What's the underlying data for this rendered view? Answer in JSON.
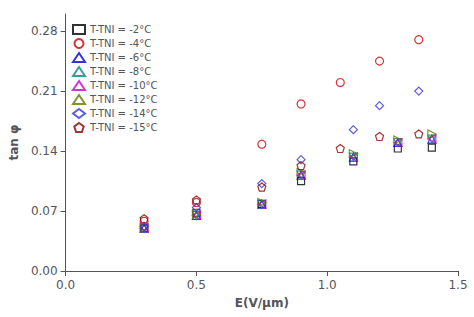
{
  "chart_data": {
    "type": "scatter",
    "xlabel": "E(V/μm)",
    "ylabel": "tan φ",
    "xlim": [
      0.0,
      1.5
    ],
    "ylim": [
      0.0,
      0.3
    ],
    "xticks": [
      {
        "value": 0.0,
        "label": "0.0"
      },
      {
        "value": 0.5,
        "label": "0.5"
      },
      {
        "value": 1.0,
        "label": "1.0"
      },
      {
        "value": 1.5,
        "label": "1.5"
      }
    ],
    "yticks": [
      {
        "value": 0.0,
        "label": "0.00"
      },
      {
        "value": 0.07,
        "label": "0.07"
      },
      {
        "value": 0.14,
        "label": "0.14"
      },
      {
        "value": 0.21,
        "label": "0.21"
      },
      {
        "value": 0.28,
        "label": "0.28"
      }
    ],
    "grid": false,
    "legend": "upper left",
    "series": [
      {
        "name": "T-TNI = -2°C",
        "color": "#000000",
        "marker": "square",
        "x": [
          0.3,
          0.5,
          0.75,
          0.9,
          1.1,
          1.27,
          1.4
        ],
        "values": [
          0.05,
          0.068,
          0.078,
          0.105,
          0.128,
          0.143,
          0.144
        ]
      },
      {
        "name": "T-TNI = -4°C",
        "color": "#cc0000",
        "marker": "circle",
        "x": [
          0.3,
          0.5,
          0.75,
          0.9,
          1.05,
          1.2,
          1.35
        ],
        "values": [
          0.058,
          0.08,
          0.148,
          0.195,
          0.22,
          0.245,
          0.27
        ]
      },
      {
        "name": "T-TNI = -6°C",
        "color": "#0000cc",
        "marker": "triangle-up",
        "x": [
          0.3,
          0.5,
          0.75,
          0.9,
          1.1,
          1.27,
          1.4
        ],
        "values": [
          0.05,
          0.065,
          0.078,
          0.112,
          0.133,
          0.15,
          0.154
        ]
      },
      {
        "name": "T-TNI = -8°C",
        "color": "#008888",
        "marker": "triangle-down",
        "x": [
          0.3,
          0.5,
          0.75,
          0.9,
          1.1,
          1.27,
          1.4
        ],
        "values": [
          0.05,
          0.065,
          0.078,
          0.112,
          0.133,
          0.15,
          0.154
        ]
      },
      {
        "name": "T-TNI = -10°C",
        "color": "#cc00cc",
        "marker": "triangle-left",
        "x": [
          0.3,
          0.5,
          0.75,
          0.9,
          1.1,
          1.27,
          1.4
        ],
        "values": [
          0.05,
          0.065,
          0.078,
          0.112,
          0.133,
          0.15,
          0.154
        ]
      },
      {
        "name": "T-TNI = -12°C",
        "color": "#667700",
        "marker": "triangle-right",
        "x": [
          0.3,
          0.5,
          0.75,
          0.9,
          1.1,
          1.27,
          1.4
        ],
        "values": [
          0.05,
          0.066,
          0.08,
          0.115,
          0.137,
          0.153,
          0.16
        ]
      },
      {
        "name": "T-TNI = -14°C",
        "color": "#3333dd",
        "marker": "diamond",
        "x": [
          0.3,
          0.5,
          0.75,
          0.9,
          1.1,
          1.2,
          1.35
        ],
        "values": [
          0.052,
          0.074,
          0.102,
          0.13,
          0.165,
          0.193,
          0.21
        ]
      },
      {
        "name": "T-TNI = -15°C",
        "color": "#880000",
        "marker": "pentagon",
        "x": [
          0.3,
          0.5,
          0.75,
          0.9,
          1.05,
          1.2,
          1.35
        ],
        "values": [
          0.061,
          0.083,
          0.098,
          0.123,
          0.143,
          0.157,
          0.16
        ]
      }
    ]
  }
}
